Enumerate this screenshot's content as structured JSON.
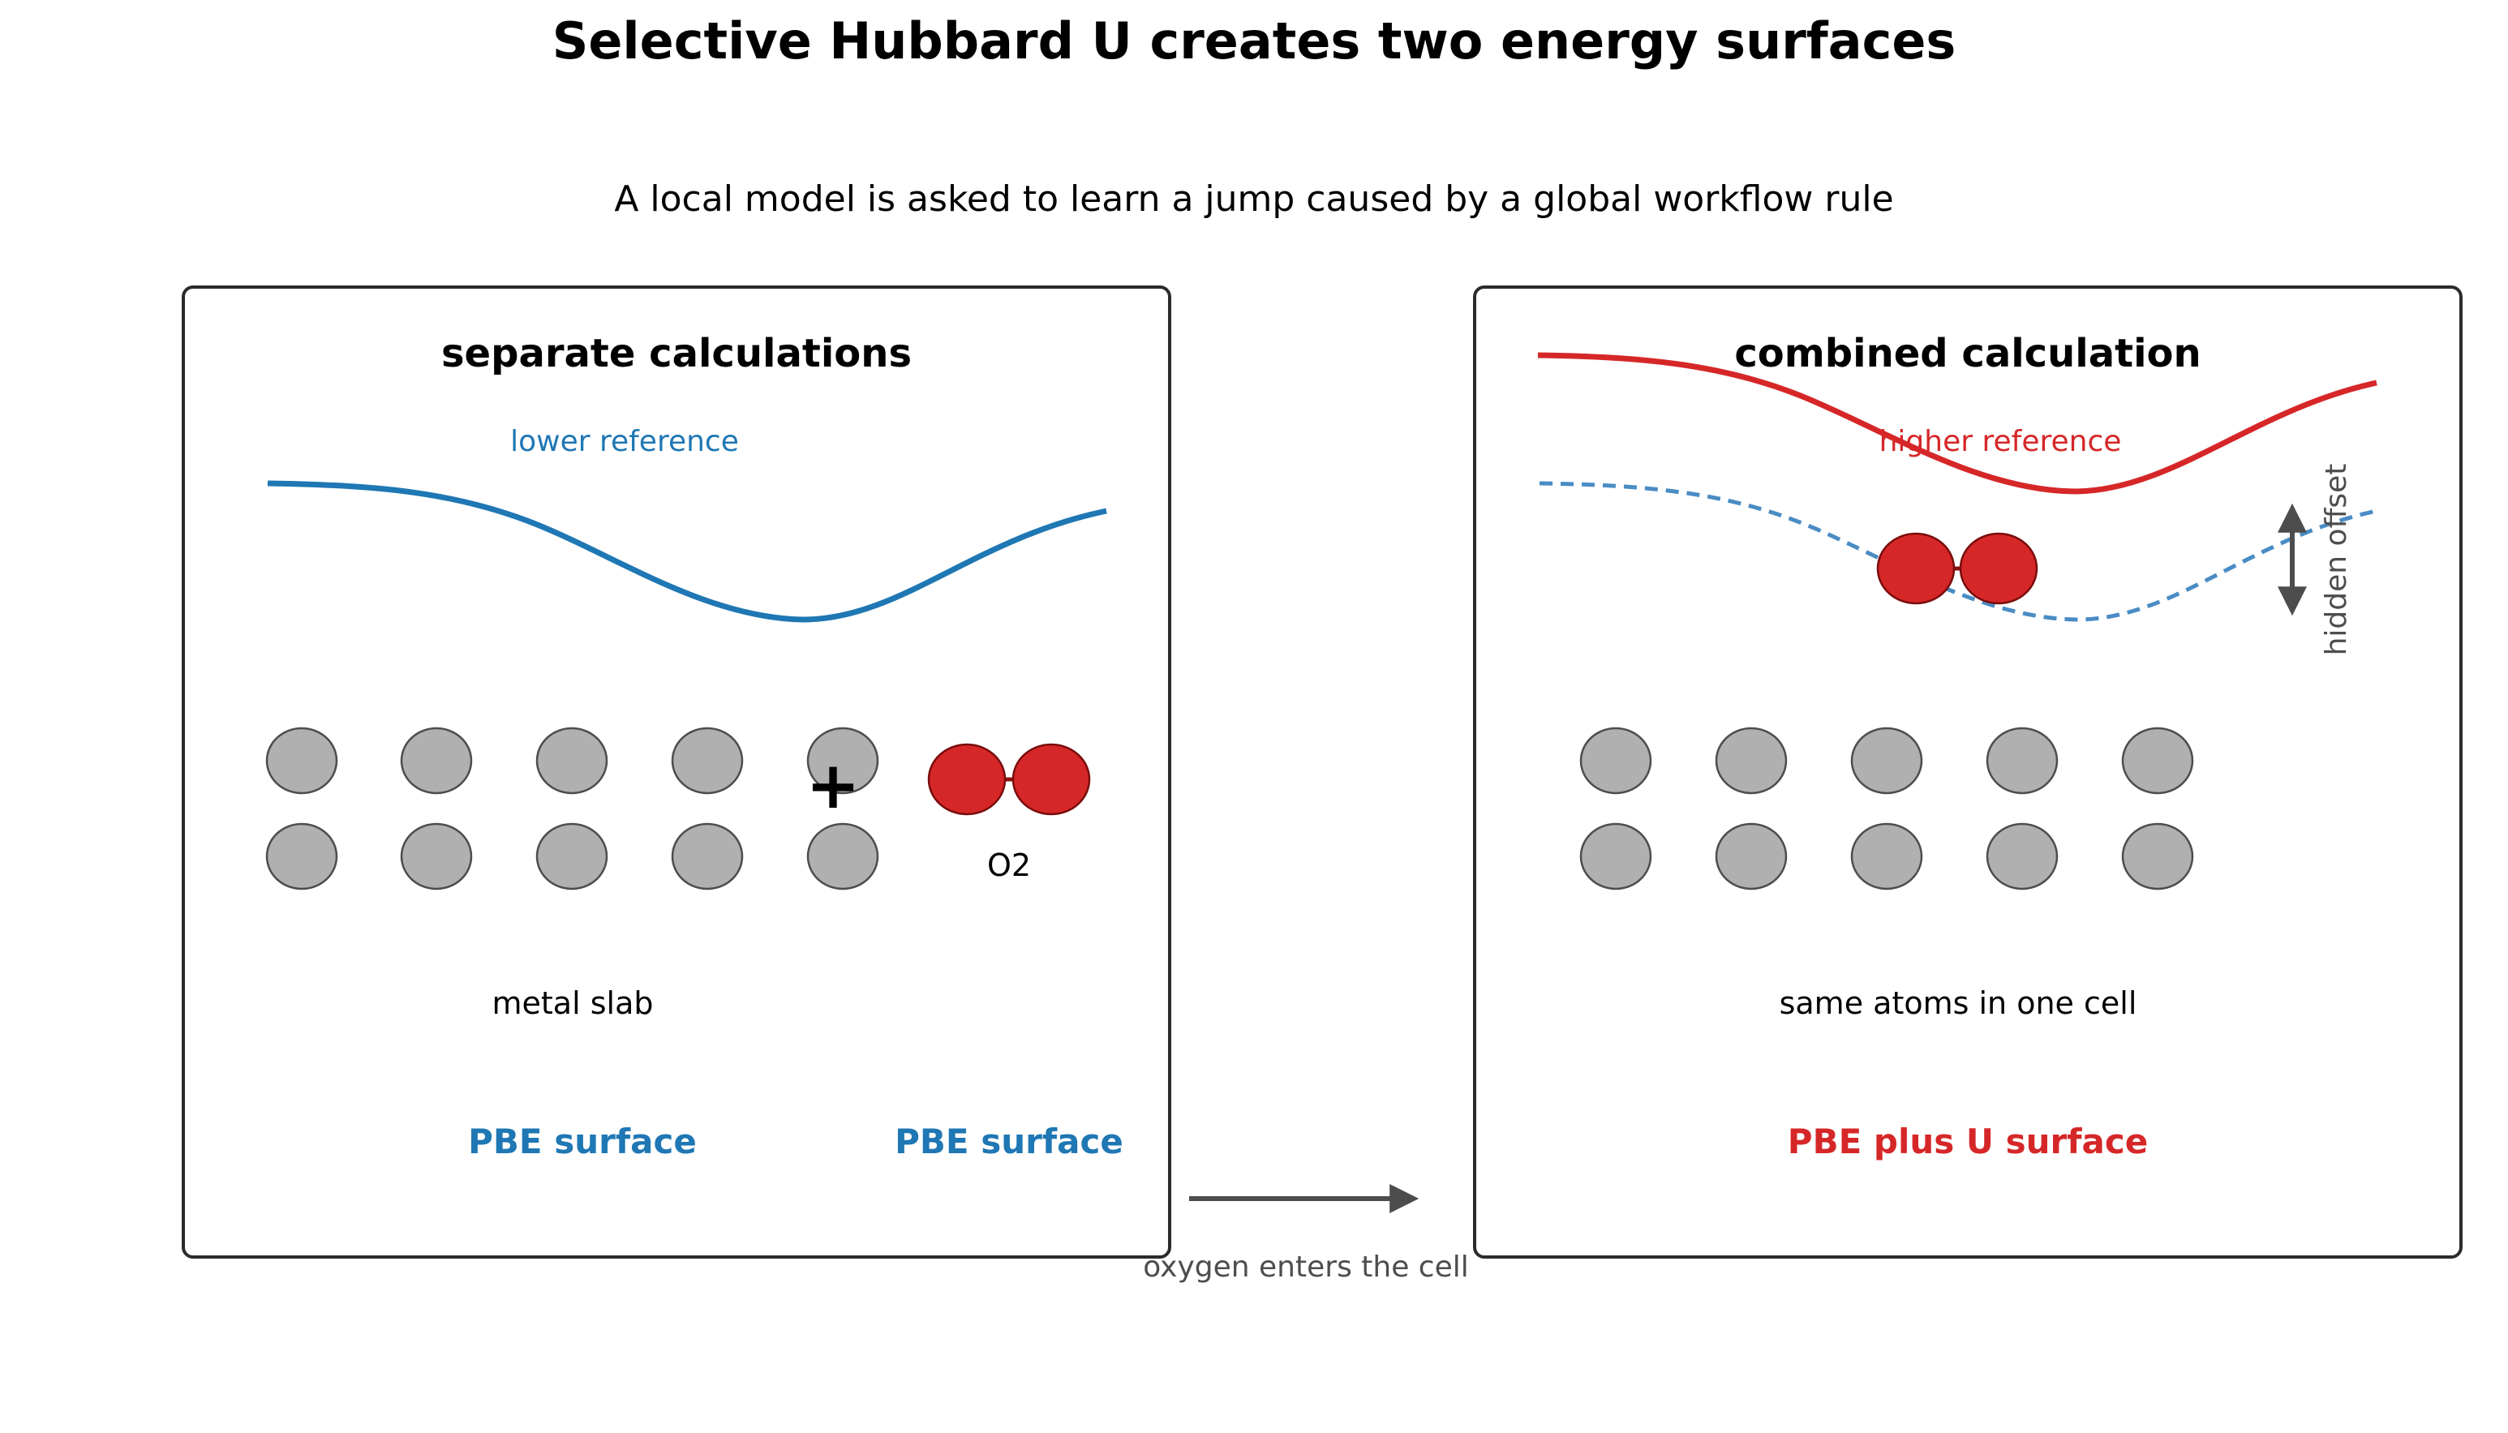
{
  "title": "Selective Hubbard U creates two energy surfaces",
  "subtitle": "A local model is asked to learn a jump caused by a global workflow rule",
  "left_panel": {
    "title": "separate calculations",
    "curve_label": "lower reference",
    "plus_sign": "+",
    "molecule_label": "O2",
    "slab_label": "metal slab",
    "surface_label_slab": "PBE surface",
    "surface_label_molecule": "PBE surface"
  },
  "right_panel": {
    "title": "combined calculation",
    "curve_label": "higher reference",
    "offset_label": "hidden offset",
    "slab_label": "same atoms in one cell",
    "surface_label": "PBE plus U surface"
  },
  "arrow_label": "oxygen enters the cell",
  "colors": {
    "blue": "#1f77b4",
    "red": "#d62728",
    "atom_gray": "#b0b0b0",
    "dark_gray": "#4d4d4d",
    "panel_border": "#2b2b2b"
  }
}
